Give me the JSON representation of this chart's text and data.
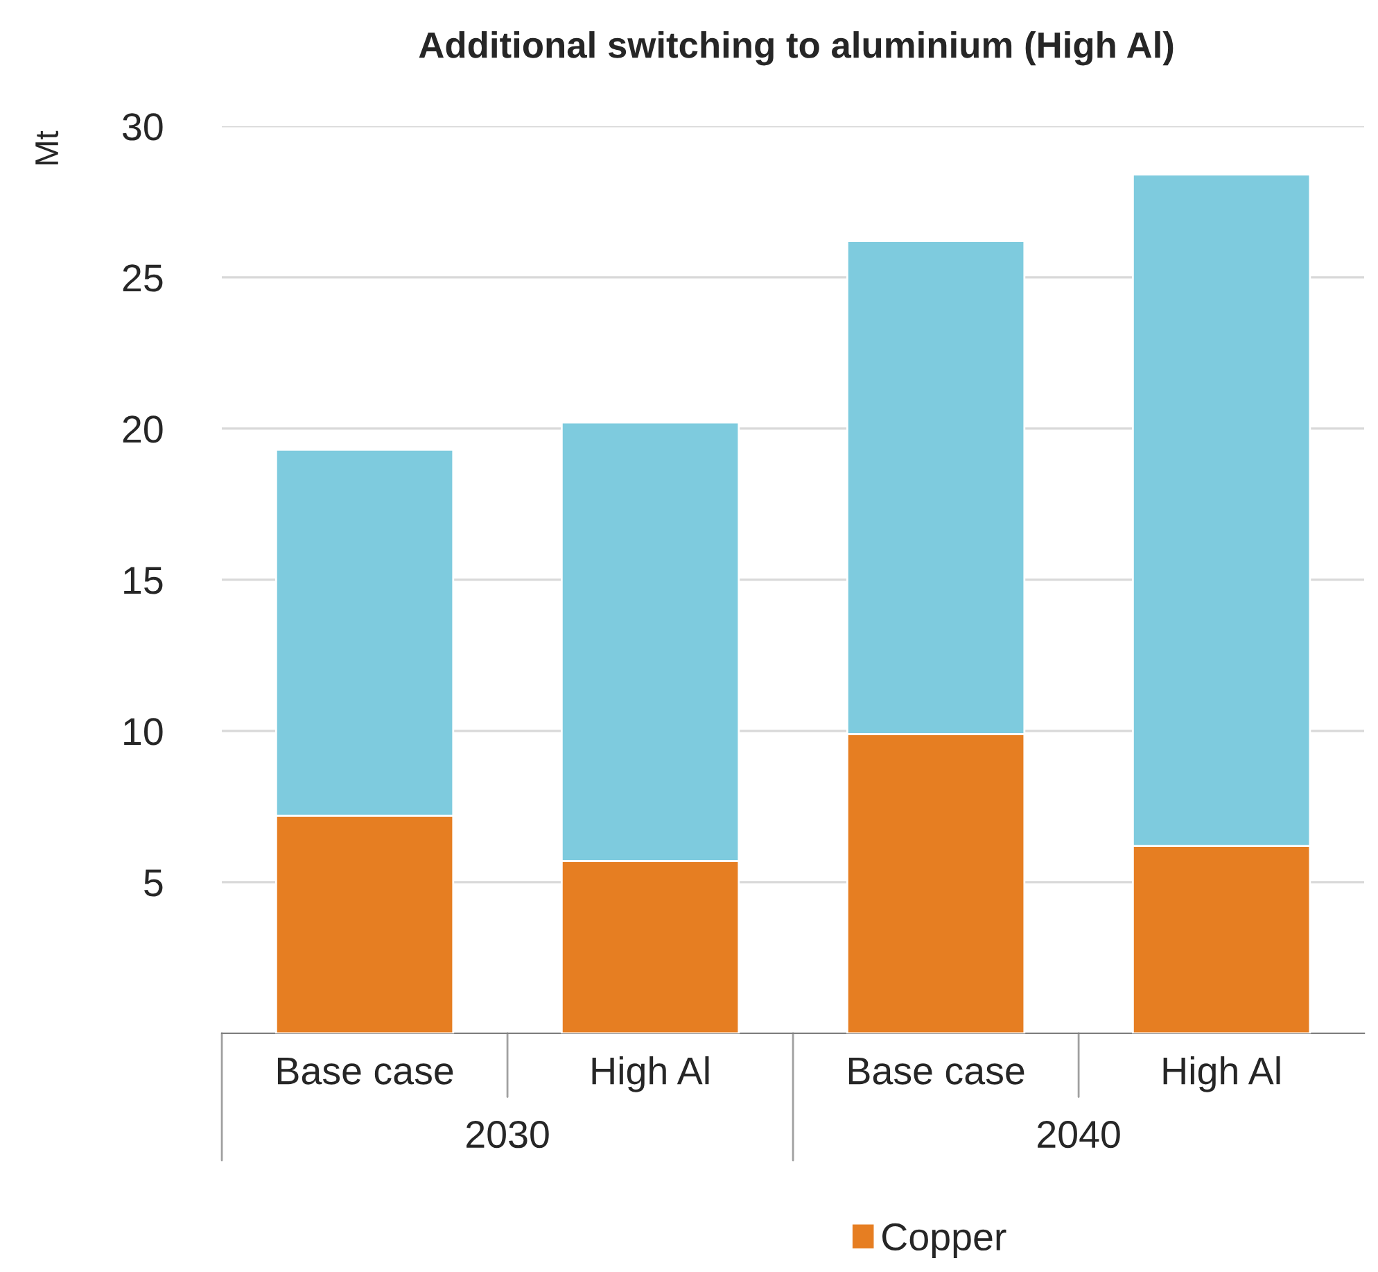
{
  "chart_data": {
    "type": "bar",
    "title": "Additional switching to aluminium (High Al)",
    "ylabel": "Mt",
    "categories": [
      "Base case",
      "High Al",
      "Base case",
      "High Al"
    ],
    "annotations": [
      "2030",
      "2040"
    ],
    "stacked": true,
    "series": [
      {
        "name": "Copper",
        "color": "#e67e22",
        "values": [
          7.2,
          5.7,
          9.9,
          6.2
        ]
      },
      {
        "color": "#7ecbde",
        "values": [
          12.1,
          14.5,
          16.3,
          22.2
        ]
      }
    ],
    "ylim": [
      0,
      30
    ],
    "yticks": [
      5,
      10,
      15,
      20,
      25,
      30
    ],
    "grid": "y",
    "legend": "bottom"
  }
}
